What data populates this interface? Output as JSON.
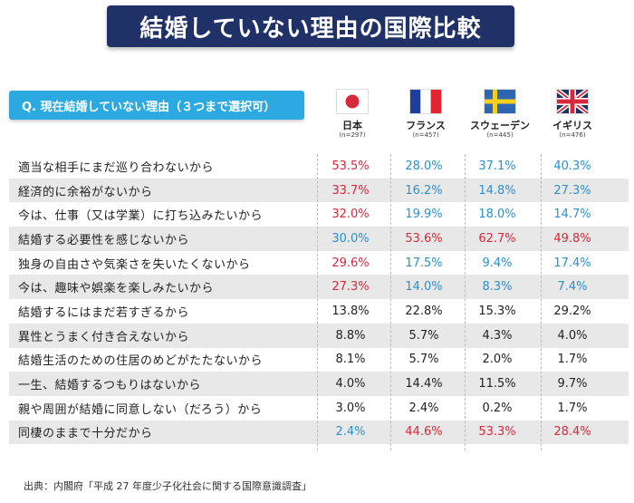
{
  "title": "結婚していない理由の国際比較",
  "question": "Q. 現在結婚していない理由（３つまで選択可）",
  "colors": {
    "red": "#d8283c",
    "blue": "#2b90d0",
    "banner": "#1f3166",
    "accent": "#2ba9e0"
  },
  "columns": [
    {
      "name": "日本",
      "n": "(n=297)",
      "flag": "japan-flag-icon"
    },
    {
      "name": "フランス",
      "n": "(n=457)",
      "flag": "france-flag-icon"
    },
    {
      "name": "スウェーデン",
      "n": "(n=445)",
      "flag": "sweden-flag-icon"
    },
    {
      "name": "イギリス",
      "n": "(n=476)",
      "flag": "uk-flag-icon"
    }
  ],
  "chart_data": {
    "type": "table",
    "title": "結婚していない理由の国際比較",
    "unit": "%",
    "categories": [
      "日本",
      "フランス",
      "スウェーデン",
      "イギリス"
    ],
    "rows": [
      {
        "label": "適当な相手にまだ巡り合わないから",
        "values": [
          "53.5%",
          "28.0%",
          "37.1%",
          "40.3%"
        ],
        "colors": [
          "red",
          "blue",
          "blue",
          "blue"
        ]
      },
      {
        "label": "経済的に余裕がないから",
        "values": [
          "33.7%",
          "16.2%",
          "14.8%",
          "27.3%"
        ],
        "colors": [
          "red",
          "blue",
          "blue",
          "blue"
        ]
      },
      {
        "label": "今は、仕事（又は学業）に打ち込みたいから",
        "values": [
          "32.0%",
          "19.9%",
          "18.0%",
          "14.7%"
        ],
        "colors": [
          "red",
          "blue",
          "blue",
          "blue"
        ]
      },
      {
        "label": "結婚する必要性を感じないから",
        "values": [
          "30.0%",
          "53.6%",
          "62.7%",
          "49.8%"
        ],
        "colors": [
          "blue",
          "red",
          "red",
          "red"
        ]
      },
      {
        "label": "独身の自由さや気楽さを失いたくないから",
        "values": [
          "29.6%",
          "17.5%",
          "9.4%",
          "17.4%"
        ],
        "colors": [
          "red",
          "blue",
          "blue",
          "blue"
        ]
      },
      {
        "label": "今は、趣味や娯楽を楽しみたいから",
        "values": [
          "27.3%",
          "14.0%",
          "8.3%",
          "7.4%"
        ],
        "colors": [
          "red",
          "blue",
          "blue",
          "blue"
        ]
      },
      {
        "label": "結婚するにはまだ若すぎるから",
        "values": [
          "13.8%",
          "22.8%",
          "15.3%",
          "29.2%"
        ],
        "colors": [
          "",
          "",
          "",
          ""
        ]
      },
      {
        "label": "異性とうまく付き合えないから",
        "values": [
          "8.8%",
          "5.7%",
          "4.3%",
          "4.0%"
        ],
        "colors": [
          "",
          "",
          "",
          ""
        ]
      },
      {
        "label": "結婚生活のための住居のめどがたたないから",
        "values": [
          "8.1%",
          "5.7%",
          "2.0%",
          "1.7%"
        ],
        "colors": [
          "",
          "",
          "",
          ""
        ]
      },
      {
        "label": "一生、結婚するつもりはないから",
        "values": [
          "4.0%",
          "14.4%",
          "11.5%",
          "9.7%"
        ],
        "colors": [
          "",
          "",
          "",
          ""
        ]
      },
      {
        "label": "親や周囲が結婚に同意しない（だろう）から",
        "values": [
          "3.0%",
          "2.4%",
          "0.2%",
          "1.7%"
        ],
        "colors": [
          "",
          "",
          "",
          ""
        ]
      },
      {
        "label": "同棲のままで十分だから",
        "values": [
          "2.4%",
          "44.6%",
          "53.3%",
          "28.4%"
        ],
        "colors": [
          "blue",
          "red",
          "red",
          "red"
        ]
      }
    ]
  },
  "source": "出典：内閣府「平成 27 年度少子化社会に関する国際意識調査」"
}
